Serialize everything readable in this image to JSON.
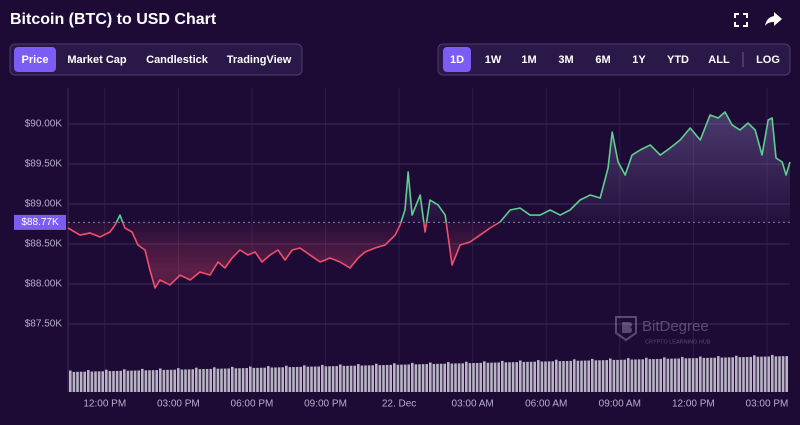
{
  "chart_data": {
    "type": "line",
    "title": "Bitcoin (BTC) to USD Chart",
    "x": [
      10.5,
      10.99,
      11.4,
      11.81,
      12.21,
      12.42,
      12.62,
      12.82,
      13.11,
      13.35,
      13.64,
      13.84,
      14.05,
      14.25,
      14.66,
      15.07,
      15.48,
      15.88,
      16.29,
      16.62,
      16.9,
      17.19,
      17.51,
      17.84,
      18.13,
      18.41,
      18.74,
      19.06,
      19.35,
      19.64,
      19.96,
      20.37,
      20.78,
      21.19,
      21.59,
      22.0,
      22.33,
      22.61,
      23.02,
      23.43,
      23.84,
      24.04,
      24.24,
      24.37,
      24.53,
      24.86,
      25.06,
      25.26,
      25.59,
      25.88,
      26.16,
      26.49,
      26.89,
      27.3,
      27.71,
      28.12,
      28.53,
      28.93,
      29.34,
      29.75,
      30.16,
      30.57,
      30.97,
      31.38,
      31.79,
      32.2,
      32.52,
      32.69,
      32.93,
      33.22,
      33.5,
      33.83,
      34.24,
      34.65,
      35.05,
      35.46,
      35.87,
      36.28,
      36.68,
      37.01,
      37.29,
      37.58,
      37.9,
      38.23,
      38.52,
      38.8,
      39.05,
      39.21,
      39.37,
      39.62,
      39.78,
      39.94
    ],
    "values": [
      88700,
      88612,
      88638,
      88588,
      88650,
      88738,
      88862,
      88700,
      88650,
      88488,
      88425,
      88175,
      87950,
      88050,
      87988,
      88112,
      88050,
      88150,
      88112,
      88275,
      88200,
      88325,
      88425,
      88362,
      88400,
      88275,
      88362,
      88425,
      88300,
      88425,
      88450,
      88362,
      88275,
      88325,
      88275,
      88200,
      88325,
      88400,
      88450,
      88488,
      88612,
      88738,
      88925,
      89400,
      88862,
      89112,
      88650,
      89050,
      88988,
      88862,
      88237,
      88488,
      88525,
      88612,
      88700,
      88775,
      88925,
      88950,
      88862,
      88862,
      88925,
      88862,
      88925,
      89050,
      89112,
      89075,
      89450,
      89900,
      89525,
      89362,
      89612,
      89675,
      89738,
      89612,
      89700,
      89800,
      89950,
      89800,
      90112,
      90075,
      90150,
      89988,
      89925,
      90012,
      89925,
      89612,
      90050,
      90075,
      89575,
      89525,
      89362,
      89525
    ],
    "color_up": "#5ecf8e",
    "color_down": "#f04e6e",
    "xlim": [
      10.5,
      39.94
    ],
    "xticks": [
      {
        "value": 12,
        "label": "12:00 PM"
      },
      {
        "value": 15,
        "label": "03:00 PM"
      },
      {
        "value": 18,
        "label": "06:00 PM"
      },
      {
        "value": 21,
        "label": "09:00 PM"
      },
      {
        "value": 24,
        "label": "22. Dec"
      },
      {
        "value": 27,
        "label": "03:00 AM"
      },
      {
        "value": 30,
        "label": "06:00 AM"
      },
      {
        "value": 33,
        "label": "09:00 AM"
      },
      {
        "value": 36,
        "label": "12:00 PM"
      },
      {
        "value": 39,
        "label": "03:00 PM"
      }
    ],
    "ylim": [
      87100,
      90450
    ],
    "yticks": [
      {
        "value": 87500,
        "label": "$87.50K"
      },
      {
        "value": 88000,
        "label": "$88.00K"
      },
      {
        "value": 88500,
        "label": "$88.50K"
      },
      {
        "value": 89000,
        "label": "$89.00K"
      },
      {
        "value": 89500,
        "label": "$89.50K"
      },
      {
        "value": 90000,
        "label": "$90.00K"
      }
    ],
    "grid": true,
    "current": {
      "value": 88770,
      "label": "$88.77K"
    }
  },
  "tabs": [
    "Price",
    "Market Cap",
    "Candlestick",
    "TradingView"
  ],
  "active_tab": 0,
  "ranges": [
    "1D",
    "1W",
    "1M",
    "3M",
    "6M",
    "1Y",
    "YTD",
    "ALL"
  ],
  "active_range": 0,
  "scale_toggle": "LOG",
  "watermark": {
    "brand": "BitDegree",
    "tagline": "CRYPTO LEARNING HUB"
  }
}
